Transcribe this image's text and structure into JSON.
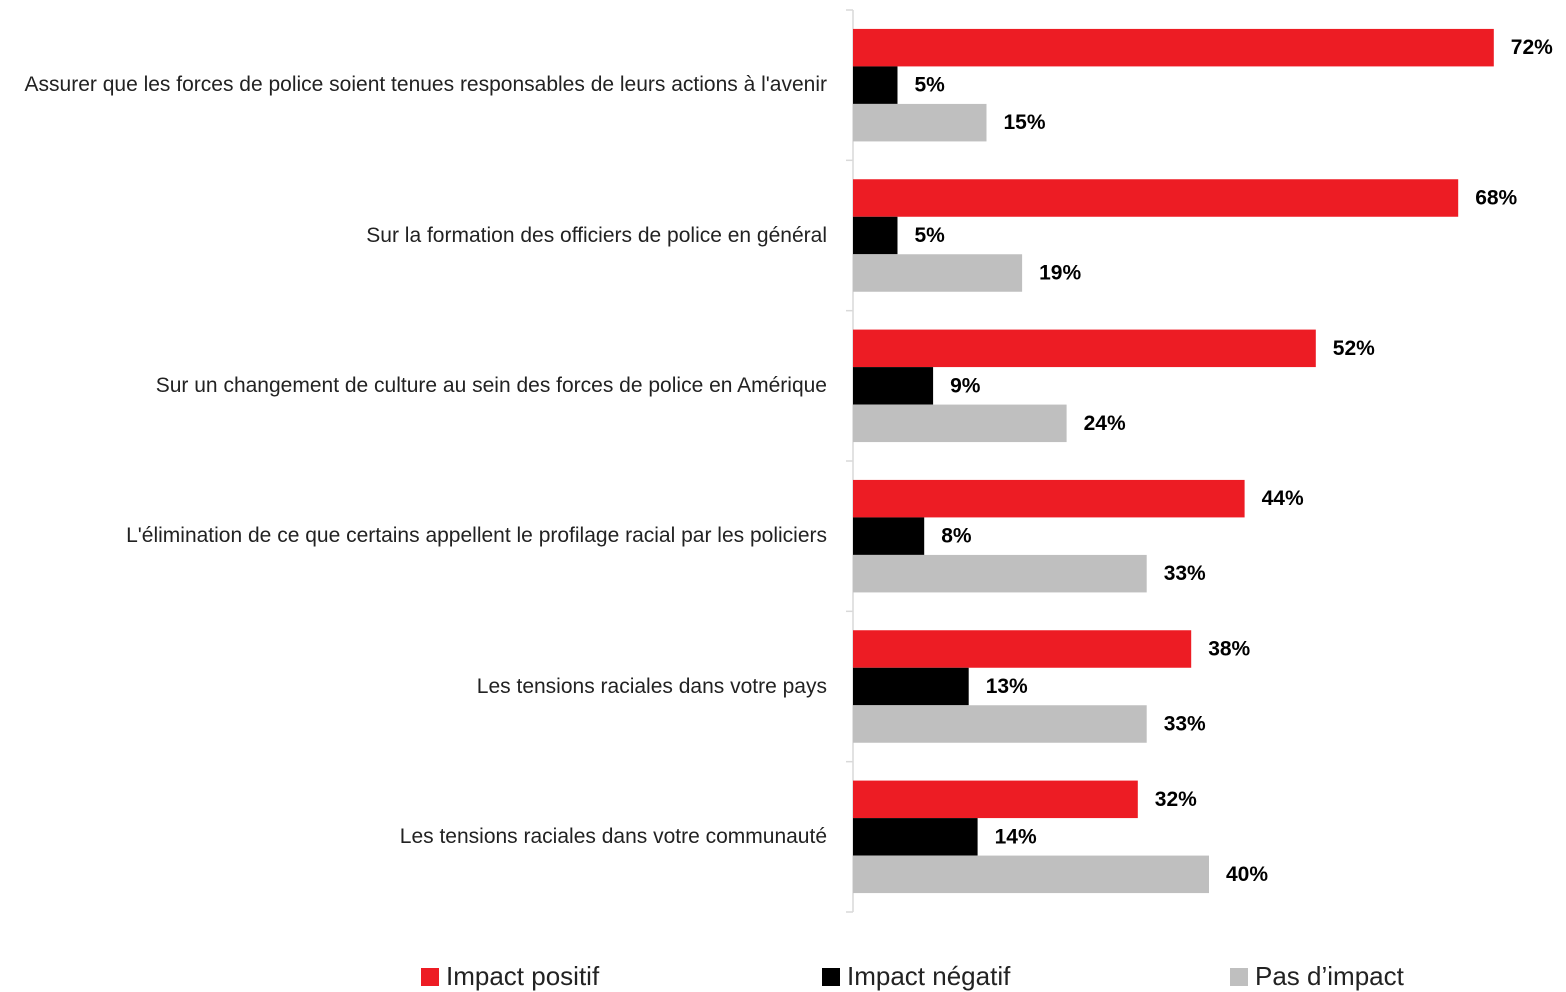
{
  "chart_data": {
    "type": "bar",
    "orientation": "horizontal",
    "categories": [
      "Assurer que les forces de police soient tenues responsables de leurs actions à l'avenir",
      "Sur la formation des officiers de police en général",
      "Sur un changement de culture au sein des forces de police en Amérique",
      "L'élimination de ce que certains appellent le profilage racial par les policiers",
      "Les tensions raciales dans votre pays",
      "Les tensions raciales dans votre communauté"
    ],
    "series": [
      {
        "name": "Impact positif",
        "color": "#ed1c24",
        "values": [
          72,
          68,
          52,
          44,
          38,
          32
        ],
        "value_labels": [
          "72%",
          "68%",
          "52%",
          "44%",
          "38%",
          "32%"
        ]
      },
      {
        "name": "Impact négatif",
        "color": "#000000",
        "values": [
          5,
          5,
          9,
          8,
          13,
          14
        ],
        "value_labels": [
          "5%",
          "5%",
          "9%",
          "8%",
          "13%",
          "14%"
        ]
      },
      {
        "name": "Pas d’impact",
        "color": "#bfbfbf",
        "values": [
          15,
          19,
          24,
          33,
          33,
          40
        ],
        "value_labels": [
          "15%",
          "19%",
          "24%",
          "33%",
          "33%",
          "40%"
        ]
      }
    ],
    "xlim": [
      0,
      80
    ],
    "legend": "bottom"
  }
}
